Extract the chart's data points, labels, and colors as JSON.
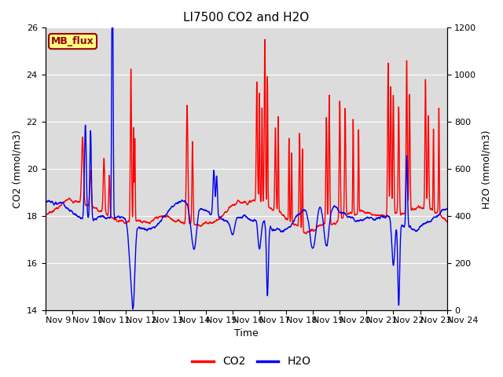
{
  "title": "LI7500 CO2 and H2O",
  "xlabel": "Time",
  "ylabel_left": "CO2 (mmol/m3)",
  "ylabel_right": "H2O (mmol/m3)",
  "co2_color": "#FF0000",
  "h2o_color": "#0000EE",
  "co2_lw": 1.0,
  "h2o_lw": 1.0,
  "ylim_left": [
    14,
    26
  ],
  "ylim_right": [
    0,
    1200
  ],
  "yticks_left": [
    14,
    16,
    18,
    20,
    22,
    24,
    26
  ],
  "yticks_right": [
    0,
    200,
    400,
    600,
    800,
    1000,
    1200
  ],
  "bg_color": "#DCDCDC",
  "fig_bg": "#FFFFFF",
  "tag_text": "MB_flux",
  "tag_fc": "#FFFF88",
  "tag_ec": "#990000",
  "tag_tc": "#990000",
  "legend_co2": "CO2",
  "legend_h2o": "H2O",
  "tick_fontsize": 8,
  "label_fontsize": 9,
  "title_fontsize": 11
}
